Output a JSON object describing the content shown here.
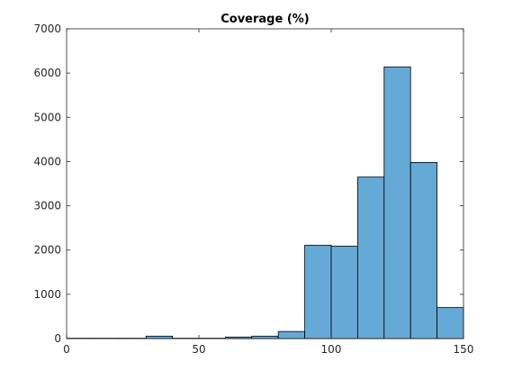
{
  "chart_data": {
    "type": "bar",
    "title": "Coverage (%)",
    "xlabel": "",
    "ylabel": "",
    "xlim": [
      0,
      150
    ],
    "ylim": [
      0,
      7000
    ],
    "xticks": [
      0,
      50,
      100,
      150
    ],
    "xtick_labels": [
      "0",
      "50",
      "100",
      "150"
    ],
    "yticks": [
      0,
      1000,
      2000,
      3000,
      4000,
      5000,
      6000,
      7000
    ],
    "ytick_labels": [
      "0",
      "1000",
      "2000",
      "3000",
      "4000",
      "5000",
      "6000",
      "7000"
    ],
    "grid": false,
    "legend": "none",
    "bar_color": "#65a9d7",
    "edge_color": "#000000",
    "bins": [
      {
        "x0": 0,
        "x1": 10,
        "value": 8
      },
      {
        "x0": 10,
        "x1": 20,
        "value": 8
      },
      {
        "x0": 20,
        "x1": 30,
        "value": 8
      },
      {
        "x0": 30,
        "x1": 40,
        "value": 55
      },
      {
        "x0": 40,
        "x1": 50,
        "value": 8
      },
      {
        "x0": 50,
        "x1": 60,
        "value": 8
      },
      {
        "x0": 60,
        "x1": 70,
        "value": 35
      },
      {
        "x0": 70,
        "x1": 80,
        "value": 55
      },
      {
        "x0": 80,
        "x1": 90,
        "value": 160
      },
      {
        "x0": 90,
        "x1": 100,
        "value": 2110
      },
      {
        "x0": 100,
        "x1": 110,
        "value": 2090
      },
      {
        "x0": 110,
        "x1": 120,
        "value": 3650
      },
      {
        "x0": 120,
        "x1": 130,
        "value": 6140
      },
      {
        "x0": 130,
        "x1": 140,
        "value": 3980
      },
      {
        "x0": 140,
        "x1": 150,
        "value": 700
      }
    ]
  }
}
